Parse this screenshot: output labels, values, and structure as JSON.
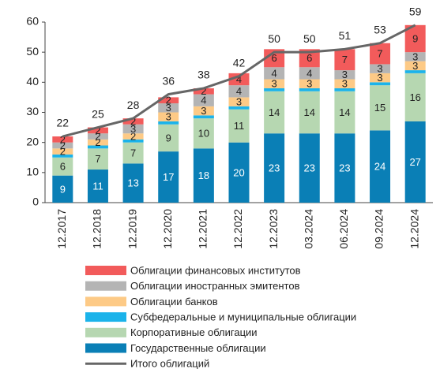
{
  "chart_data": {
    "type": "bar",
    "categories": [
      "12.2017",
      "12.2018",
      "12.2019",
      "12.2020",
      "12.2021",
      "12.2022",
      "12.2023",
      "03.2024",
      "06.2024",
      "09.2024",
      "12.2024"
    ],
    "stacked": true,
    "series": [
      {
        "name": "Государственные облигации",
        "color": "#0a7fb6",
        "label_color": "#ffffff",
        "values": [
          9,
          11,
          13,
          17,
          18,
          20,
          23,
          23,
          23,
          24,
          27
        ]
      },
      {
        "name": "Корпоративные облигации",
        "color": "#b6d7b1",
        "label_color": "#222222",
        "values": [
          6,
          7,
          7,
          9,
          10,
          11,
          14,
          14,
          14,
          15,
          16
        ]
      },
      {
        "name": "Субфедеральные и муниципальные облигации",
        "color": "#1bb3ea",
        "labels": false,
        "values": [
          1,
          1,
          1,
          1,
          1,
          1,
          1,
          1,
          1,
          1,
          1
        ]
      },
      {
        "name": "Облигации банков",
        "color": "#fdca86",
        "label_color": "#222222",
        "values": [
          2,
          2,
          2,
          3,
          3,
          3,
          3,
          3,
          3,
          3,
          3
        ]
      },
      {
        "name": "Облигации иностранных эмитентов",
        "color": "#b4b4b4",
        "label_color": "#222222",
        "values": [
          2,
          2,
          3,
          3,
          4,
          4,
          4,
          4,
          3,
          3,
          3
        ]
      },
      {
        "name": "Облигации финансовых институтов",
        "color": "#f25b5b",
        "label_color": "#222222",
        "values": [
          2,
          2,
          2,
          2,
          2,
          4,
          6,
          6,
          7,
          7,
          9
        ]
      }
    ],
    "line": {
      "name": "Итого облигаций",
      "color": "#666666",
      "values": [
        22,
        25,
        28,
        36,
        38,
        42,
        50,
        50,
        51,
        53,
        59
      ]
    },
    "ylim": [
      0,
      60
    ],
    "yticks": [
      0,
      10,
      20,
      30,
      40,
      50,
      60
    ],
    "grid": false
  }
}
